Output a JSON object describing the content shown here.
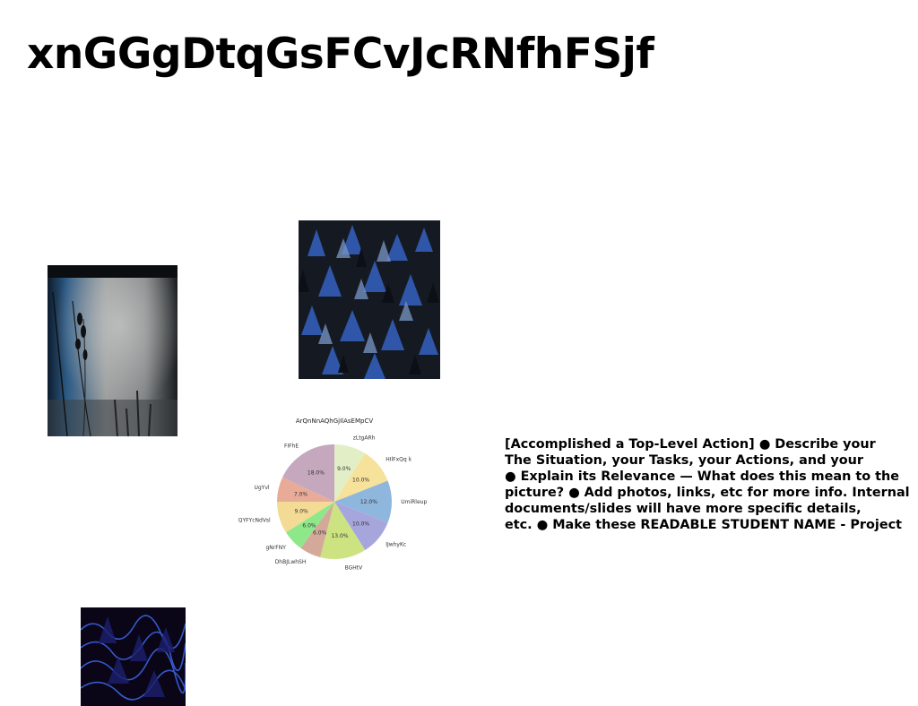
{
  "slide": {
    "title": "xnGGgDtqGsFCvJcRNfhFSjf",
    "body_text": "[Accomplished a Top-Level Action] ● Describe your\nThe Situation, your Tasks, your Actions, and your\n● Explain its Relevance — What does this mean to the\npicture? ● Add photos, links, etc for more info. Internal\ndocuments/slides will have more specific details,\netc. ● Make these READABLE STUDENT NAME - Project"
  },
  "chart_data": {
    "type": "pie",
    "title": "ArQnNnAQhGjIlAsEMpCV",
    "start_angle_deg": 90,
    "direction": "clockwise",
    "slices": [
      {
        "label": "zLtgARh",
        "value": 9.0,
        "pct_label": "9.0%",
        "color": "#e2efc6"
      },
      {
        "label": "HIlFxQq k",
        "value": 10.0,
        "pct_label": "10.0%",
        "color": "#f6e29a"
      },
      {
        "label": "UmiRleup",
        "value": 12.0,
        "pct_label": "12.0%",
        "color": "#8fb6dc"
      },
      {
        "label": "IJwhyKc",
        "value": 10.0,
        "pct_label": "10.0%",
        "color": "#a6a6dc"
      },
      {
        "label": "BGHtV",
        "value": 13.0,
        "pct_label": "13.0%",
        "color": "#cde382"
      },
      {
        "label": "DhBJLwhSH",
        "value": 6.0,
        "pct_label": "6.0%",
        "color": "#d4a99a"
      },
      {
        "label": "gNrFNY",
        "value": 6.0,
        "pct_label": "6.0%",
        "color": "#8ee88a"
      },
      {
        "label": "QYFYcNdVsl",
        "value": 9.0,
        "pct_label": "9.0%",
        "color": "#f3db96"
      },
      {
        "label": "UgYvl",
        "value": 7.0,
        "pct_label": "7.0%",
        "color": "#e8ab98"
      },
      {
        "label": "FIFhE",
        "value": 18.0,
        "pct_label": "18.0%",
        "color": "#c6a8be"
      }
    ]
  }
}
